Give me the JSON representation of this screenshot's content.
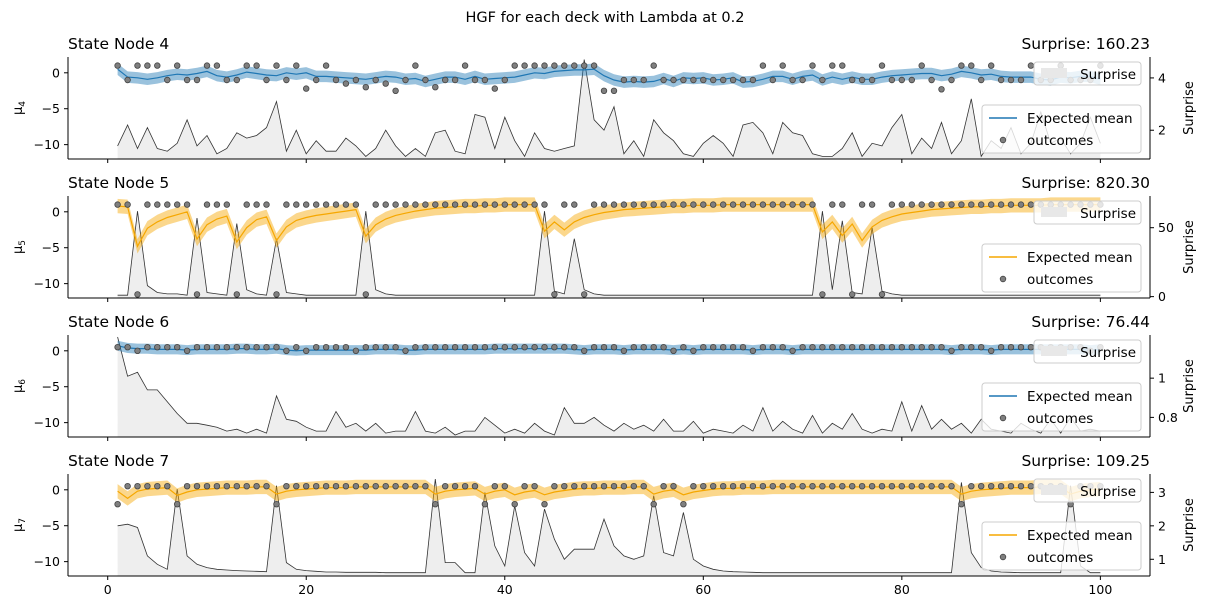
{
  "figure": {
    "title": "HGF for each deck with Lambda at 0.2"
  },
  "legend_labels": {
    "surprise": "Surprise",
    "expected_mean": "Expected mean",
    "outcomes": "outcomes"
  },
  "colors": {
    "blue": "#1f77b4",
    "orange": "#f6a700",
    "surprise_fill": "#e8e8e8",
    "surprise_line": "#333333",
    "outcome_marker": "#7f7f7f"
  },
  "chart_data": [
    {
      "type": "line",
      "title": "State Node 4",
      "surprise_label": "Surprise: 160.23",
      "ylabel": "μ₄",
      "ylabel_main": "μ",
      "ylabel_sub": "4",
      "y2label": "Surprise",
      "color": "blue",
      "x": [
        1,
        100
      ],
      "xlim": [
        -4,
        105
      ],
      "xticks": [
        0,
        20,
        40,
        60,
        80,
        100
      ],
      "ylim": [
        -12,
        2.2
      ],
      "yticks": [
        -10,
        -5,
        0
      ],
      "y2lim": [
        0.9,
        4.8
      ],
      "y2ticks": [
        2,
        4
      ],
      "outcomes": [
        1,
        -1,
        1,
        1,
        1,
        -1,
        1,
        -1,
        -1,
        1,
        1,
        -1,
        -1,
        1,
        1,
        -1,
        1,
        -1,
        1,
        -2.2,
        -1,
        1,
        -1,
        -1.5,
        -1,
        -2,
        -1,
        -1.5,
        -2.5,
        -1,
        1,
        -1,
        -2,
        -1,
        -1,
        1,
        -1,
        -1,
        -2.2,
        -1,
        1,
        1,
        1,
        1,
        1,
        1,
        1,
        1,
        1,
        -2.5,
        -2.5,
        -1,
        -1,
        -1,
        1,
        -1,
        -1,
        -1,
        -1,
        -1,
        -1,
        -1,
        -1,
        -1,
        -1,
        1,
        -1,
        1,
        -1,
        -1,
        1,
        -1,
        1,
        1,
        -1,
        -1,
        -1,
        1,
        -1,
        -1,
        -1,
        1,
        -1,
        -2.3,
        -1,
        1,
        1,
        -1,
        1,
        -1,
        -1,
        -1,
        1,
        -1,
        -1,
        1,
        -1,
        -1,
        -1,
        1
      ],
      "surprise": [
        1.4,
        2.2,
        1.3,
        2.1,
        1.3,
        1.2,
        1.5,
        2.4,
        1.4,
        1.8,
        1.1,
        1.3,
        1.9,
        1.7,
        1.8,
        2.1,
        3.1,
        1.2,
        2.0,
        1.1,
        1.6,
        1.2,
        1.2,
        1.7,
        1.4,
        1.0,
        1.3,
        2.0,
        1.4,
        1.0,
        1.3,
        1.0,
        1.9,
        2.0,
        1.2,
        1.1,
        2.6,
        2.5,
        1.3,
        2.5,
        1.6,
        1.0,
        1.9,
        1.3,
        1.2,
        1.3,
        1.4,
        4.7,
        2.4,
        2.0,
        2.9,
        1.1,
        1.6,
        1.0,
        2.4,
        1.9,
        1.6,
        1.1,
        1.0,
        1.5,
        1.8,
        1.5,
        1.0,
        2.2,
        2.3,
        1.9,
        1.1,
        2.3,
        1.9,
        1.8,
        1.1,
        1.0,
        1.0,
        1.3,
        1.9,
        1.0,
        1.5,
        1.4,
        2.1,
        2.6,
        1.1,
        1.7,
        1.3,
        2.3,
        1.1,
        1.6,
        3.2,
        1.0,
        1.6,
        1.3,
        2.1,
        1.1,
        1.5,
        2.7,
        1.5,
        1.7,
        1.1,
        1.5,
        2.5,
        1.5
      ],
      "expected_mean": [
        0.5,
        -0.6,
        -0.7,
        -0.9,
        -0.7,
        -0.4,
        -0.2,
        -0.3,
        -0.1,
        0.2,
        -0.4,
        -0.6,
        -0.3,
        0.1,
        -0.1,
        -0.3,
        -0.4,
        0.0,
        -0.2,
        0.0,
        -0.5,
        -0.5,
        -0.6,
        -0.7,
        -0.8,
        -0.9,
        -0.7,
        -0.5,
        -0.6,
        -0.9,
        -0.8,
        -1.2,
        -0.9,
        -0.6,
        -0.6,
        -0.9,
        -0.5,
        -0.9,
        -0.8,
        -0.7,
        -0.6,
        -0.3,
        0.0,
        -0.1,
        0.2,
        0.3,
        0.4,
        0.4,
        0.5,
        -0.4,
        -1.0,
        -1.3,
        -1.2,
        -1.3,
        -1.2,
        -0.8,
        -1.2,
        -0.7,
        -0.8,
        -0.7,
        -1.0,
        -0.9,
        -0.7,
        -1.3,
        -1.2,
        -0.9,
        -0.5,
        -0.5,
        -0.9,
        -0.5,
        -0.3,
        -1.0,
        -0.6,
        -0.9,
        -0.6,
        -0.9,
        -0.9,
        -0.6,
        -0.4,
        -0.3,
        -0.2,
        -0.1,
        -0.1,
        -0.4,
        -0.2,
        0.2,
        0.0,
        -0.3,
        -0.2,
        -0.5,
        -0.6,
        -0.6,
        -0.6,
        -0.9,
        -1.0,
        -0.6,
        -0.7,
        -0.5,
        -0.5,
        -0.9
      ],
      "band_halfwidth": 0.8
    },
    {
      "type": "line",
      "title": "State Node 5",
      "surprise_label": "Surprise: 820.30",
      "ylabel": "μ₅",
      "ylabel_main": "μ",
      "ylabel_sub": "5",
      "y2label": "Surprise",
      "color": "orange",
      "xlim": [
        -4,
        105
      ],
      "xticks": [
        0,
        20,
        40,
        60,
        80,
        100
      ],
      "ylim": [
        -12,
        2.2
      ],
      "yticks": [
        -10,
        -5,
        0
      ],
      "y2lim": [
        -1,
        73
      ],
      "y2ticks": [
        0,
        50
      ],
      "outcomes": [
        1,
        1,
        -11.5,
        1,
        1,
        1,
        1,
        1,
        -11.5,
        1,
        1,
        1,
        -11.5,
        1,
        1,
        1,
        -11.5,
        1,
        1,
        1,
        1,
        1,
        1,
        1,
        1,
        -11.5,
        1,
        1,
        1,
        1,
        1,
        1,
        1,
        1,
        1,
        1,
        1,
        1,
        1,
        1,
        1,
        1,
        1,
        1,
        -11.5,
        1,
        1,
        -11.5,
        1,
        1,
        1,
        1,
        1,
        1,
        1,
        1,
        1,
        1,
        1,
        1,
        1,
        1,
        1,
        1,
        1,
        1,
        1,
        1,
        1,
        1,
        1,
        -11.5,
        1,
        1,
        -11.5,
        1,
        1,
        -11.5,
        1,
        1,
        1,
        1,
        1,
        1,
        1,
        1,
        1,
        1,
        1,
        1,
        1,
        1,
        1,
        1,
        1,
        1,
        1,
        1,
        1,
        1
      ],
      "surprise": [
        1,
        1,
        62,
        8,
        3,
        2,
        2,
        1,
        57,
        3,
        2,
        1,
        53,
        5,
        2,
        1,
        42,
        3,
        2,
        1,
        1,
        1,
        1,
        1,
        1,
        62,
        5,
        2,
        1,
        1,
        1,
        1,
        1,
        1,
        1,
        1,
        1,
        1,
        1,
        1,
        1,
        1,
        1,
        62,
        4,
        2,
        42,
        5,
        2,
        1,
        1,
        1,
        1,
        1,
        1,
        1,
        1,
        1,
        1,
        1,
        1,
        1,
        1,
        1,
        1,
        1,
        1,
        1,
        1,
        1,
        1,
        62,
        5,
        55,
        3,
        2,
        50,
        4,
        2,
        1,
        1,
        1,
        1,
        1,
        1,
        1,
        1,
        1,
        1,
        1,
        1,
        1,
        1,
        1,
        1,
        1,
        1,
        1,
        1,
        1
      ],
      "expected_mean": [
        0.8,
        0.7,
        -4.8,
        -2.3,
        -1.4,
        -0.8,
        -0.4,
        0.0,
        -3.8,
        -1.8,
        -1.0,
        -0.6,
        -4.2,
        -2.2,
        -1.1,
        -0.7,
        -4.0,
        -2.1,
        -1.2,
        -0.8,
        -0.5,
        -0.3,
        -0.1,
        0.1,
        0.3,
        -3.4,
        -1.8,
        -1.0,
        -0.5,
        -0.2,
        0.1,
        0.3,
        0.5,
        0.6,
        0.7,
        0.8,
        0.8,
        0.9,
        0.9,
        1.0,
        1.0,
        1.0,
        1.0,
        -2.7,
        -1.4,
        -2.5,
        -1.4,
        -0.8,
        -0.4,
        -0.1,
        0.1,
        0.3,
        0.4,
        0.5,
        0.6,
        0.7,
        0.8,
        0.8,
        0.9,
        0.9,
        0.9,
        1.0,
        1.0,
        1.0,
        1.0,
        1.0,
        1.0,
        1.0,
        1.0,
        1.0,
        1.0,
        -2.8,
        -1.4,
        -3.3,
        -1.7,
        -4.0,
        -2.1,
        -1.2,
        -0.7,
        -0.3,
        -0.1,
        0.1,
        0.3,
        0.4,
        0.5,
        0.6,
        0.7,
        0.7,
        0.8,
        0.8,
        0.9,
        0.9,
        0.9,
        0.9,
        1.0,
        1.0,
        1.0,
        1.0,
        1.0,
        1.0
      ],
      "band_halfwidth": 1.0
    },
    {
      "type": "line",
      "title": "State Node 6",
      "surprise_label": "Surprise: 76.44",
      "ylabel": "μ₆",
      "ylabel_main": "μ",
      "ylabel_sub": "6",
      "y2label": "Surprise",
      "color": "blue",
      "xlim": [
        -4,
        105
      ],
      "xticks": [
        0,
        20,
        40,
        60,
        80,
        100
      ],
      "ylim": [
        -12,
        2.2
      ],
      "yticks": [
        -10,
        -5,
        0
      ],
      "y2lim": [
        0.7,
        1.22
      ],
      "y2ticks": [
        0.8,
        1.0
      ],
      "outcomes": [
        0.5,
        0.5,
        0,
        0.5,
        0.5,
        0.5,
        0.5,
        0,
        0.5,
        0.5,
        0.5,
        0.5,
        0.5,
        0.5,
        0.5,
        0.5,
        0.5,
        0,
        0.5,
        0,
        0.5,
        0.5,
        0.5,
        0.5,
        0,
        0.5,
        0.5,
        0.5,
        0.5,
        0,
        0.5,
        0.5,
        0.5,
        0.5,
        0.5,
        0.5,
        0.5,
        0.5,
        0.5,
        0.5,
        0.5,
        0.5,
        0.5,
        0.5,
        0.5,
        0.5,
        0.5,
        0,
        0.5,
        0.5,
        0.5,
        0,
        0.5,
        0.5,
        0.5,
        0.5,
        0,
        0.5,
        0,
        0.5,
        0.5,
        0.5,
        0.5,
        0.5,
        0,
        0.5,
        0.5,
        0.5,
        0,
        0.5,
        0.5,
        0.5,
        0.5,
        0.5,
        0.5,
        0.5,
        0.5,
        0.5,
        0.5,
        0.5,
        0.5,
        0.5,
        0.5,
        0.5,
        0,
        0.5,
        0.5,
        0.5,
        0,
        0.5,
        0.5,
        0.5,
        0.5,
        0.5,
        0.5,
        0.5,
        0.5,
        0.5,
        0,
        0.5
      ],
      "surprise": [
        1.21,
        1.01,
        1.03,
        0.94,
        0.94,
        0.88,
        0.82,
        0.77,
        0.77,
        0.76,
        0.75,
        0.73,
        0.74,
        0.72,
        0.74,
        0.72,
        0.91,
        0.79,
        0.78,
        0.75,
        0.73,
        0.73,
        0.83,
        0.75,
        0.77,
        0.73,
        0.77,
        0.72,
        0.73,
        0.73,
        0.83,
        0.73,
        0.72,
        0.75,
        0.71,
        0.73,
        0.73,
        0.8,
        0.76,
        0.72,
        0.74,
        0.72,
        0.77,
        0.73,
        0.71,
        0.85,
        0.77,
        0.77,
        0.8,
        0.76,
        0.73,
        0.77,
        0.74,
        0.76,
        0.73,
        0.79,
        0.73,
        0.73,
        0.78,
        0.72,
        0.74,
        0.73,
        0.72,
        0.76,
        0.73,
        0.85,
        0.73,
        0.78,
        0.74,
        0.72,
        0.81,
        0.72,
        0.77,
        0.74,
        0.82,
        0.74,
        0.72,
        0.74,
        0.73,
        0.88,
        0.73,
        0.86,
        0.74,
        0.79,
        0.74,
        0.77,
        0.72,
        0.79,
        0.74,
        0.73,
        0.72,
        0.77,
        0.74,
        0.72,
        0.79,
        0.72,
        0.8,
        0.73,
        0.74,
        0.73
      ],
      "expected_mean": [
        0.7,
        0.4,
        0.3,
        0.3,
        0.2,
        0.2,
        0.2,
        0.1,
        0.2,
        0.2,
        0.2,
        0.2,
        0.3,
        0.3,
        0.2,
        0.2,
        0.3,
        0.1,
        0.0,
        0.1,
        0.1,
        0.1,
        0.1,
        0.1,
        0.1,
        0.1,
        0.2,
        0.2,
        0.2,
        0.1,
        0.1,
        0.2,
        0.2,
        0.2,
        0.2,
        0.2,
        0.2,
        0.2,
        0.3,
        0.3,
        0.3,
        0.3,
        0.3,
        0.3,
        0.3,
        0.3,
        0.2,
        0.1,
        0.2,
        0.2,
        0.2,
        0.1,
        0.2,
        0.2,
        0.2,
        0.2,
        0.1,
        0.2,
        0.1,
        0.2,
        0.2,
        0.2,
        0.2,
        0.2,
        0.1,
        0.2,
        0.2,
        0.2,
        0.1,
        0.2,
        0.2,
        0.2,
        0.2,
        0.2,
        0.2,
        0.2,
        0.2,
        0.2,
        0.2,
        0.2,
        0.2,
        0.2,
        0.2,
        0.2,
        0.1,
        0.2,
        0.2,
        0.2,
        0.1,
        0.2,
        0.2,
        0.2,
        0.2,
        0.2,
        0.2,
        0.2,
        0.2,
        0.2,
        0.1,
        0.2
      ],
      "band_halfwidth": 0.7
    },
    {
      "type": "line",
      "title": "State Node 7",
      "surprise_label": "Surprise: 109.25",
      "ylabel": "μ₇",
      "ylabel_main": "μ",
      "ylabel_sub": "7",
      "y2label": "Surprise",
      "color": "orange",
      "xlim": [
        -4,
        105
      ],
      "xticks": [
        0,
        20,
        40,
        60,
        80,
        100
      ],
      "ylim": [
        -12,
        2.2
      ],
      "yticks": [
        -10,
        -5,
        0
      ],
      "y2lim": [
        0.5,
        3.55
      ],
      "y2ticks": [
        1,
        2,
        3
      ],
      "outcomes": [
        -2,
        0.5,
        0.5,
        0.5,
        0.5,
        0.5,
        -2,
        0.5,
        0.5,
        0.5,
        0.5,
        0.5,
        0.5,
        0.5,
        0.5,
        0.5,
        -2,
        0.5,
        0.5,
        0.5,
        0.5,
        0.5,
        0.5,
        0.5,
        0.5,
        0.5,
        0.5,
        0.5,
        0.5,
        0.5,
        0.5,
        0.5,
        -2,
        0.5,
        0.5,
        0.5,
        0.5,
        -2,
        0.5,
        0.5,
        -2,
        0.5,
        0.5,
        -2,
        0.5,
        0.5,
        0.5,
        0.5,
        0.5,
        0.5,
        0.5,
        0.5,
        0.5,
        0.5,
        -2,
        0.5,
        0.5,
        -2,
        0.5,
        0.5,
        0.5,
        0.5,
        0.5,
        0.5,
        0.5,
        0.5,
        0.5,
        0.5,
        0.5,
        0.5,
        0.5,
        0.5,
        0.5,
        0.5,
        0.5,
        0.5,
        0.5,
        0.5,
        0.5,
        0.5,
        0.5,
        0.5,
        0.5,
        0.5,
        0.5,
        -2,
        0.5,
        0.5,
        0.5,
        0.5,
        0.5,
        0.5,
        0.5,
        0.5,
        0.5,
        0.5,
        -2,
        0.5,
        0.5,
        0.5
      ],
      "surprise": [
        2.0,
        2.05,
        1.95,
        1.1,
        0.85,
        0.7,
        3.1,
        1.1,
        0.85,
        0.75,
        0.7,
        0.68,
        0.66,
        0.65,
        0.64,
        0.63,
        3.2,
        0.9,
        0.7,
        0.66,
        0.64,
        0.62,
        0.62,
        0.61,
        0.61,
        0.61,
        0.61,
        0.6,
        0.6,
        0.6,
        0.6,
        0.6,
        3.4,
        0.9,
        0.9,
        0.6,
        0.6,
        3.0,
        1.4,
        0.8,
        2.6,
        1.2,
        0.8,
        2.5,
        1.6,
        1.0,
        1.3,
        1.3,
        1.3,
        2.2,
        1.4,
        1.1,
        1.0,
        1.1,
        2.9,
        1.2,
        1.1,
        2.4,
        1.0,
        0.8,
        0.7,
        0.65,
        0.63,
        0.62,
        0.61,
        0.6,
        0.6,
        0.6,
        0.6,
        0.6,
        0.6,
        0.6,
        0.6,
        0.6,
        0.6,
        0.6,
        0.6,
        0.6,
        0.6,
        0.6,
        0.6,
        0.6,
        0.6,
        0.6,
        0.6,
        3.3,
        1.2,
        0.75,
        0.65,
        0.62,
        0.61,
        0.6,
        0.6,
        0.6,
        0.6,
        0.6,
        3.2,
        0.8,
        0.6,
        0.6
      ],
      "expected_mean": [
        -0.2,
        -1.2,
        -0.2,
        0.1,
        0.2,
        0.3,
        -0.8,
        -0.3,
        0.0,
        0.1,
        0.2,
        0.3,
        0.3,
        0.3,
        0.4,
        0.4,
        -0.6,
        -0.2,
        0.0,
        0.1,
        0.2,
        0.3,
        0.3,
        0.3,
        0.4,
        0.4,
        0.4,
        0.4,
        0.4,
        0.4,
        0.4,
        0.4,
        -0.6,
        -0.2,
        0.0,
        0.1,
        0.2,
        -0.6,
        -0.2,
        0.0,
        -0.7,
        -0.3,
        -0.1,
        -0.7,
        -0.3,
        -0.1,
        0.1,
        0.2,
        0.2,
        0.3,
        0.3,
        0.3,
        0.4,
        0.4,
        -0.6,
        -0.2,
        0.0,
        -0.7,
        -0.3,
        -0.1,
        0.1,
        0.2,
        0.2,
        0.3,
        0.3,
        0.3,
        0.4,
        0.4,
        0.4,
        0.4,
        0.4,
        0.4,
        0.4,
        0.4,
        0.4,
        0.4,
        0.4,
        0.4,
        0.4,
        0.4,
        0.4,
        0.4,
        0.4,
        0.4,
        0.4,
        -0.6,
        -0.2,
        0.0,
        0.1,
        0.2,
        0.3,
        0.3,
        0.3,
        0.4,
        0.4,
        0.4,
        -0.6,
        -0.2,
        0.0,
        0.1
      ],
      "band_halfwidth": 1.0
    }
  ]
}
